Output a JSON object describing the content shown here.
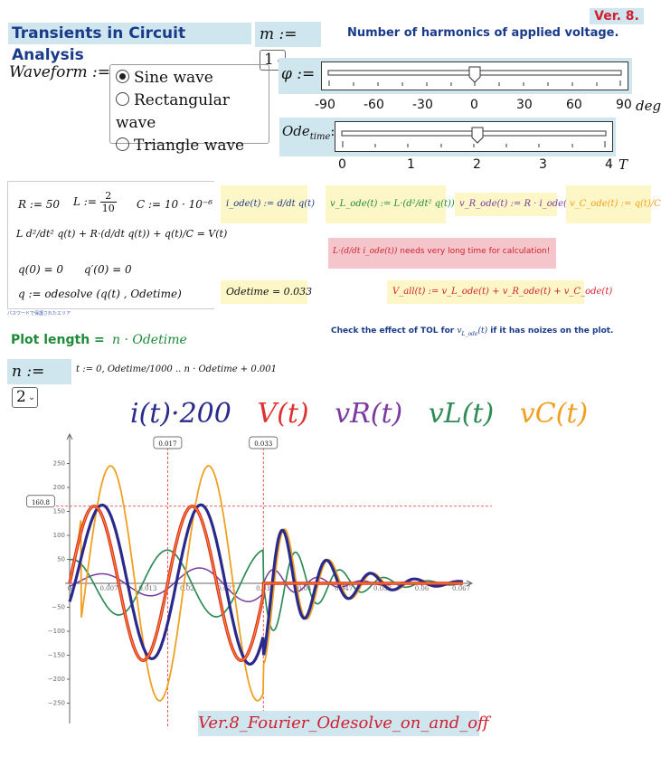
{
  "header": {
    "version_badge": "Ver. 8.",
    "title": "Transients in Circuit Analysis",
    "m_label": "m :=",
    "m_value": "1",
    "harmonics_note": "Number of harmonics of applied voltage."
  },
  "waveform": {
    "label": "Waveform :=",
    "options": [
      {
        "label": "Sine wave",
        "selected": true
      },
      {
        "label": "Rectangular wave",
        "selected": false
      },
      {
        "label": "Triangle wave",
        "selected": false
      }
    ]
  },
  "phi_slider": {
    "label": "φ :=",
    "ticks": [
      "-90",
      "-60",
      "-30",
      "0",
      "30",
      "60",
      "90"
    ],
    "unit": "deg",
    "value": 0
  },
  "ode_slider": {
    "label_main": "Ode",
    "label_sub": "time",
    "label_assign": ":=",
    "ticks": [
      "0",
      "1",
      "2",
      "3",
      "4"
    ],
    "unit": "T",
    "value": 2
  },
  "equations": {
    "R": "R := 50",
    "L_prefix": "L :=",
    "L_num": "2",
    "L_den": "10",
    "C": "C := 10 · 10⁻⁶",
    "ode_line": "L d²/dt² q(t) + R·(d/dt q(t)) + q(t)/C = V(t)",
    "init": "q(0) = 0      q′(0) = 0",
    "solve": "q := odesolve (q(t) , Odetime)",
    "protected_note": "パスワードで保護されたエリア"
  },
  "defs": {
    "i_ode": "i_ode(t) := d/dt q(t)",
    "vL_ode": "v_L_ode(t) := L·(d²/dt² q(t))",
    "vR_ode": "v_R_ode(t) := R · i_ode(t)",
    "vC_ode": "v_C_ode(t) := q(t)/C",
    "warning_expr": "L·(d/dt i_ode(t))",
    "warning_text": "needs very long time for calculation!",
    "odetime_result": "Odetime = 0.033",
    "vall": "V_all(t) := v_L_ode(t) + v_R_ode(t) + v_C_ode(t)"
  },
  "tol_note_prefix": "Check the effect of TOL for",
  "tol_note_suffix": "if it has noizes on the plot.",
  "plot_length": {
    "label": "Plot length =",
    "expr": "n · Odetime"
  },
  "n_control": {
    "label": "n :=",
    "value": "2",
    "range_expr": "t := 0, Odetime/1000 .. n · Odetime + 0.001"
  },
  "legend": {
    "i": "i(t)·200",
    "V": "V(t)",
    "vR": "vR(t)",
    "vL": "vL(t)",
    "vC": "vC(t)"
  },
  "colors": {
    "i": "#2a2a8c",
    "V": "#e03030",
    "vR": "#7a3aa0",
    "vL": "#2e8b57",
    "vC": "#f0a020",
    "title": "#1a3a8a",
    "green": "#1e8a3a",
    "badge": "#d02030"
  },
  "footer": "Ver.8_Fourier_Odesolve_on_and_off",
  "chart_data": {
    "type": "line",
    "x_ticks": [
      "0",
      "0.007",
      "0.013",
      "0.02",
      "0.027",
      "0.033",
      "0.04",
      "0.047",
      "0.053",
      "0.06",
      "0.067"
    ],
    "y_ticks": [
      "250",
      "200",
      "150",
      "100",
      "50",
      "0",
      "−50",
      "−100",
      "−150",
      "−200",
      "−250"
    ],
    "xlim": [
      0,
      0.067
    ],
    "ylim": [
      -280,
      290
    ],
    "markers": {
      "x1": "0.017",
      "x2": "0.033",
      "y": "160.8"
    },
    "amplitude": 160.8,
    "period": 0.0167,
    "switch_time": 0.033,
    "series": [
      {
        "name": "i(t)·200"
      },
      {
        "name": "V(t)"
      },
      {
        "name": "vR(t)"
      },
      {
        "name": "vL(t)"
      },
      {
        "name": "vC(t)"
      }
    ]
  }
}
